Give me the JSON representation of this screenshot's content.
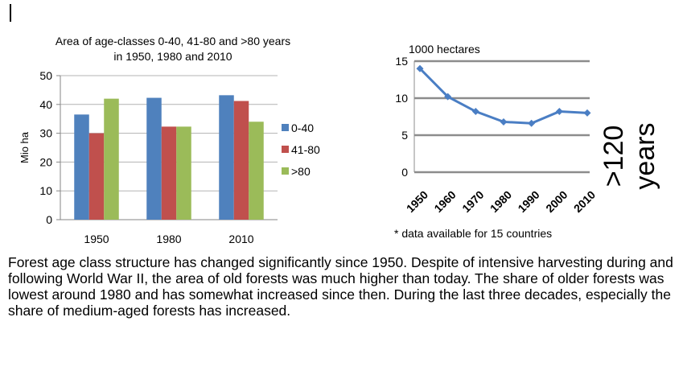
{
  "chart_data": [
    {
      "type": "bar",
      "title": "Area of age-classes 0-40, 41-80 and >80 years in 1950, 1980 and 2010",
      "title_lines": [
        "Area of age-classes 0-40, 41-80 and >80 years",
        "in 1950, 1980 and 2010"
      ],
      "ylabel": "Mio ha",
      "categories": [
        "1950",
        "1980",
        "2010"
      ],
      "ylim": [
        0,
        50
      ],
      "yticks": [
        0,
        10,
        20,
        30,
        40,
        50
      ],
      "legend_position": "right",
      "series": [
        {
          "name": "0-40",
          "color": "#4F81BD",
          "values": [
            36.5,
            42.3,
            43.2
          ]
        },
        {
          "name": "41-80",
          "color": "#C0504D",
          "values": [
            30,
            32.3,
            41.2
          ]
        },
        {
          "name": ">80",
          "color": "#9BBB59",
          "values": [
            42,
            32.3,
            34
          ]
        }
      ]
    },
    {
      "type": "line",
      "unit_label": "1000 hectares",
      "side_label": ">120 years",
      "x": [
        "1950",
        "1960",
        "1970",
        "1980",
        "1990",
        "2000",
        "2010"
      ],
      "ylim": [
        0,
        15
      ],
      "yticks": [
        0,
        5,
        10,
        15
      ],
      "series": [
        {
          "color": "#4A7EC4",
          "values": [
            14,
            10.2,
            8.2,
            6.8,
            6.6,
            8.2,
            8
          ]
        }
      ],
      "footnote": "* data available for 15 countries"
    }
  ],
  "text": {
    "paragraph": "Forest age class structure has changed significantly since 1950. Despite of intensive harvesting during and following World War II, the area of old forests was much higher than today. The share of older forests was lowest around 1980 and has somewhat increased since then. During the last three decades, especially the share of medium-aged forests has increased."
  }
}
